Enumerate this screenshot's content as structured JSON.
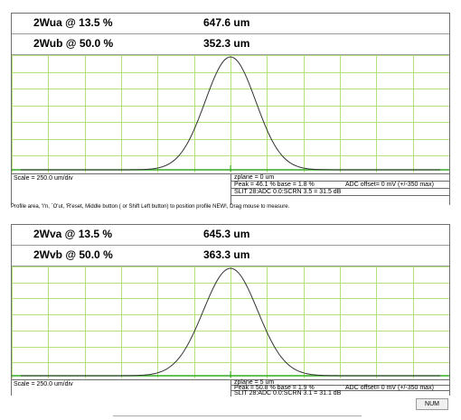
{
  "panels": [
    {
      "header_rows": [
        {
          "label": "2Wua @ 13.5 %",
          "value": "647.6 um"
        },
        {
          "label": "2Wub @ 50.0 %",
          "value": "352.3 um"
        }
      ],
      "info": {
        "scale": "Scale = 250.0 um/div",
        "zplane": "zplane = 0 um",
        "peak_base": "Peak = 46.1 %  base = 1.8 %",
        "adc_offset": "ADC offset= 0 mV (+/-350 max)",
        "slit": "SLIT 28:ADC 0.0:SCRN 3.5 = 31.5 dB"
      }
    },
    {
      "header_rows": [
        {
          "label": "2Wva @ 13.5 %",
          "value": "645.3 um"
        },
        {
          "label": "2Wvb @ 50.0 %",
          "value": "363.3 um"
        }
      ],
      "info": {
        "scale": "Scale = 250.0 um/div",
        "zplane": "zplane = 5 um",
        "peak_base": "Peak = 50.8 %  base = 1.9 %",
        "adc_offset": "ADC offset= 0 mV (+/-350 max)",
        "slit": "SLIT 28:ADC 0.0:SCRN 3.1 = 31.1 dB"
      }
    }
  ],
  "status_text": "Profile area, 'I'n, `O'ut, 'R'eset, Middle button ( or Shift Left button) to position profile NEW!, Drag mouse to measure.",
  "status_bar": {
    "num": "NUM"
  },
  "colors": {
    "grid": "#b4e27a",
    "baseline": "#33aa22",
    "trace": "#333333",
    "center_marker": "#33aa22"
  }
}
